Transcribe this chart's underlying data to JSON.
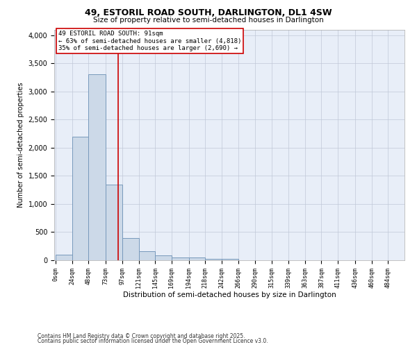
{
  "title_line1": "49, ESTORIL ROAD SOUTH, DARLINGTON, DL1 4SW",
  "title_line2": "Size of property relative to semi-detached houses in Darlington",
  "xlabel": "Distribution of semi-detached houses by size in Darlington",
  "ylabel": "Number of semi-detached properties",
  "bar_color": "#ccd9e8",
  "bar_edge_color": "#7799bb",
  "bar_left_edges": [
    0,
    24,
    48,
    73,
    97,
    121,
    145,
    169,
    194,
    218,
    242,
    266,
    290,
    315,
    339,
    363,
    387,
    411,
    436,
    460
  ],
  "bar_widths": [
    24,
    24,
    25,
    24,
    24,
    24,
    24,
    25,
    24,
    24,
    24,
    24,
    25,
    24,
    24,
    24,
    24,
    25,
    24,
    24
  ],
  "bar_heights": [
    100,
    2200,
    3300,
    1350,
    400,
    155,
    90,
    50,
    45,
    30,
    25,
    0,
    0,
    0,
    0,
    0,
    0,
    0,
    0,
    0
  ],
  "tick_labels": [
    "0sqm",
    "24sqm",
    "48sqm",
    "73sqm",
    "97sqm",
    "121sqm",
    "145sqm",
    "169sqm",
    "194sqm",
    "218sqm",
    "242sqm",
    "266sqm",
    "290sqm",
    "315sqm",
    "339sqm",
    "363sqm",
    "387sqm",
    "411sqm",
    "436sqm",
    "460sqm",
    "484sqm"
  ],
  "tick_positions": [
    0,
    24,
    48,
    73,
    97,
    121,
    145,
    169,
    194,
    218,
    242,
    266,
    290,
    315,
    339,
    363,
    387,
    411,
    436,
    460,
    484
  ],
  "vline_x": 91,
  "vline_color": "#cc0000",
  "ylim": [
    0,
    4100
  ],
  "xlim": [
    -2,
    508
  ],
  "annotation_text": "49 ESTORIL ROAD SOUTH: 91sqm\n← 63% of semi-detached houses are smaller (4,818)\n35% of semi-detached houses are larger (2,690) →",
  "annotation_box_color": "#cc0000",
  "grid_color": "#c0c8d8",
  "background_color": "#e8eef8",
  "footer_line1": "Contains HM Land Registry data © Crown copyright and database right 2025.",
  "footer_line2": "Contains public sector information licensed under the Open Government Licence v3.0."
}
